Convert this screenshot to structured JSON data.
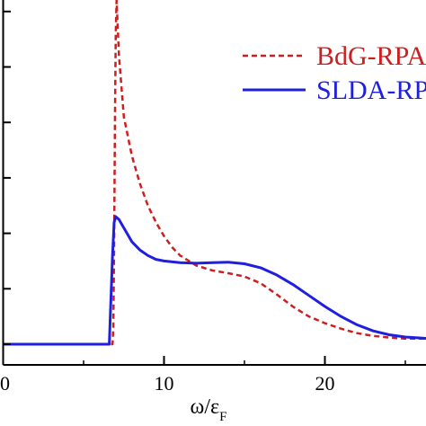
{
  "chart_data": {
    "type": "line",
    "title": "",
    "xlabel": "ω/ε",
    "xlabel_subscript": "F",
    "ylabel": "",
    "xlim": [
      0,
      26.5
    ],
    "ylim": [
      -0.4,
      6.2
    ],
    "x_ticks": [
      0,
      10,
      20
    ],
    "x_tick_labels": [
      "0",
      "10",
      "20"
    ],
    "y_ticks": [
      0,
      1,
      2,
      3,
      4,
      5,
      6
    ],
    "grid": false,
    "legend_position": "top-right",
    "series": [
      {
        "name": "BdG-RPA",
        "color": "#cc1f1f",
        "style": "dashed",
        "points": [
          [
            0,
            0
          ],
          [
            6.8,
            0
          ],
          [
            6.85,
            0.3
          ],
          [
            6.9,
            1.8
          ],
          [
            6.95,
            4.0
          ],
          [
            7.0,
            5.6
          ],
          [
            7.05,
            6.2
          ],
          [
            7.2,
            5.2
          ],
          [
            7.5,
            4.1
          ],
          [
            8,
            3.4
          ],
          [
            8.5,
            2.9
          ],
          [
            9,
            2.5
          ],
          [
            9.5,
            2.2
          ],
          [
            10,
            1.95
          ],
          [
            10.5,
            1.75
          ],
          [
            11,
            1.6
          ],
          [
            12,
            1.42
          ],
          [
            13,
            1.33
          ],
          [
            14,
            1.28
          ],
          [
            15,
            1.22
          ],
          [
            16,
            1.1
          ],
          [
            17,
            0.9
          ],
          [
            18,
            0.68
          ],
          [
            19,
            0.5
          ],
          [
            20,
            0.38
          ],
          [
            21,
            0.28
          ],
          [
            22,
            0.2
          ],
          [
            23,
            0.15
          ],
          [
            24,
            0.12
          ],
          [
            25,
            0.1
          ],
          [
            26.5,
            0.1
          ]
        ]
      },
      {
        "name": "SLDA-RP",
        "color": "#1f1fdd",
        "style": "solid",
        "points": [
          [
            0,
            0
          ],
          [
            6.6,
            0
          ],
          [
            6.7,
            0.8
          ],
          [
            6.8,
            1.6
          ],
          [
            6.9,
            2.2
          ],
          [
            7.0,
            2.3
          ],
          [
            7.2,
            2.25
          ],
          [
            7.6,
            2.05
          ],
          [
            8,
            1.85
          ],
          [
            8.5,
            1.7
          ],
          [
            9,
            1.6
          ],
          [
            9.5,
            1.53
          ],
          [
            10,
            1.5
          ],
          [
            11,
            1.47
          ],
          [
            12,
            1.46
          ],
          [
            13,
            1.47
          ],
          [
            14,
            1.48
          ],
          [
            15,
            1.45
          ],
          [
            16,
            1.38
          ],
          [
            17,
            1.25
          ],
          [
            18,
            1.08
          ],
          [
            19,
            0.88
          ],
          [
            20,
            0.68
          ],
          [
            21,
            0.5
          ],
          [
            22,
            0.35
          ],
          [
            23,
            0.24
          ],
          [
            24,
            0.17
          ],
          [
            25,
            0.13
          ],
          [
            26.5,
            0.1
          ]
        ]
      }
    ]
  }
}
